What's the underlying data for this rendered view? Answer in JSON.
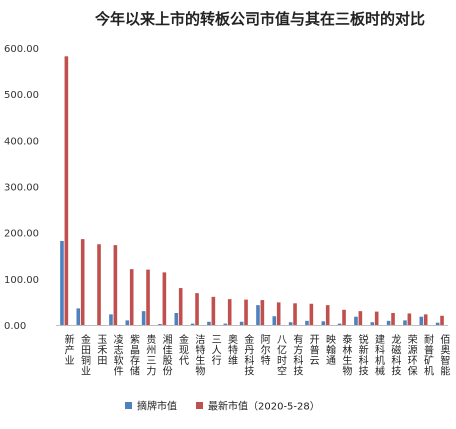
{
  "chart_data": {
    "type": "bar",
    "title": "今年以来上市的转板公司市值与其在三板时的对比",
    "categories": [
      "新产业",
      "金田铜业",
      "玉禾田",
      "凌志软件",
      "紫晶存储",
      "贵州三力",
      "湘佳股份",
      "金现代",
      "洁特生物",
      "三人行",
      "奥特维",
      "金丹科技",
      "阿尔特",
      "八亿时空",
      "有方科技",
      "开普云",
      "映翰通",
      "泰林生物",
      "锐新科技",
      "建科机械",
      "龙磁科技",
      "荣源环保",
      "耐普矿机",
      "佰奥智能"
    ],
    "series": [
      {
        "name": "摘牌市值",
        "color": "#4f81bd",
        "values": [
          182,
          36,
          0,
          23,
          10,
          30,
          2,
          26,
          3,
          7,
          3,
          7,
          43,
          19,
          6,
          9,
          8,
          3,
          18,
          6,
          9,
          10,
          18,
          5
        ]
      },
      {
        "name": "最新市值（2020-5-28）",
        "color": "#c0504d",
        "values": [
          582,
          186,
          175,
          173,
          121,
          120,
          114,
          80,
          69,
          61,
          56,
          55,
          54,
          49,
          47,
          46,
          43,
          33,
          30,
          29,
          26,
          25,
          23,
          20
        ]
      }
    ],
    "yticks": [
      "0.00",
      "100.00",
      "200.00",
      "300.00",
      "400.00",
      "500.00",
      "600.00"
    ],
    "ylim": [
      0,
      600
    ],
    "grid": false,
    "legend_position": "bottom"
  }
}
